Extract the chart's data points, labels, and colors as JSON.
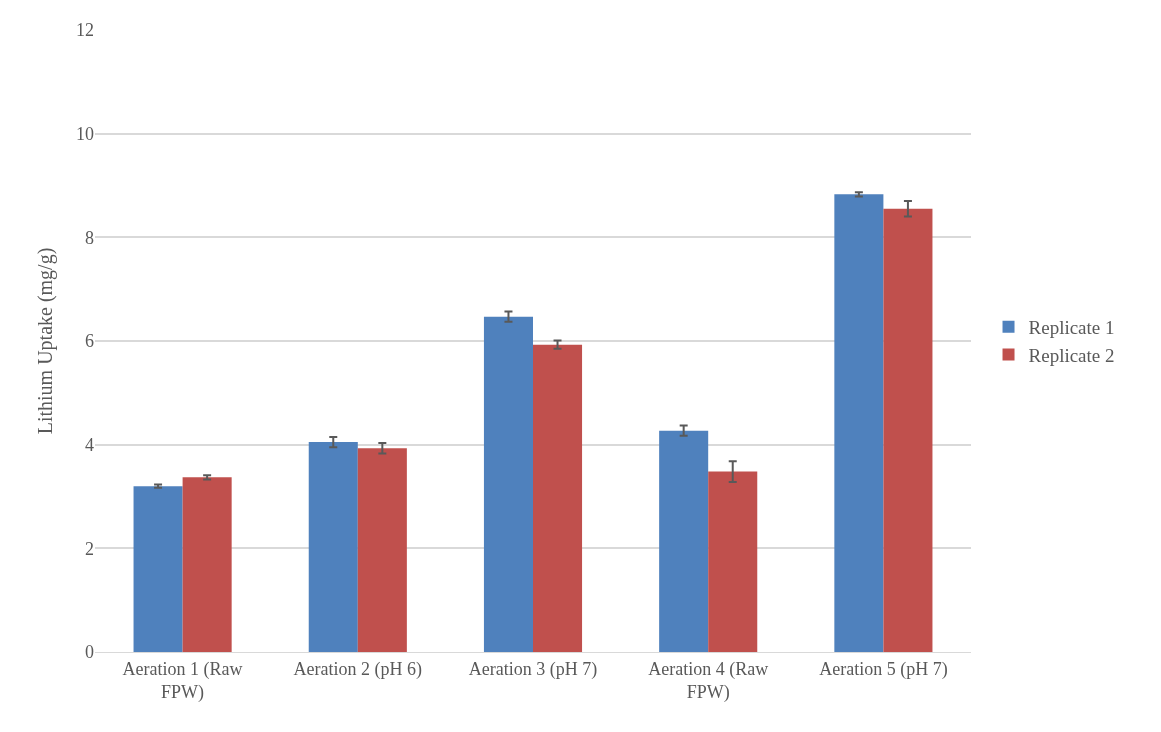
{
  "chart_data": {
    "type": "bar",
    "ylabel": "Lithium Uptake (mg/g)",
    "categories": [
      "Aeration 1 (Raw FPW)",
      "Aeration 2 (pH 6)",
      "Aeration 3 (pH 7)",
      "Aeration 4 (Raw FPW)",
      "Aeration 5 (pH 7)"
    ],
    "series": [
      {
        "name": "Replicate 1",
        "color": "#4f81bd",
        "values": [
          3.2,
          4.05,
          6.47,
          4.27,
          8.83
        ],
        "errors": [
          0.03,
          0.1,
          0.1,
          0.1,
          0.04
        ]
      },
      {
        "name": "Replicate 2",
        "color": "#c0504d",
        "values": [
          3.37,
          3.93,
          5.93,
          3.48,
          8.55
        ],
        "errors": [
          0.04,
          0.1,
          0.08,
          0.2,
          0.15
        ]
      }
    ],
    "ylim": [
      0,
      12
    ],
    "yticks": [
      0,
      2,
      4,
      6,
      8,
      10,
      12
    ],
    "grid": "y",
    "legend": "right"
  }
}
